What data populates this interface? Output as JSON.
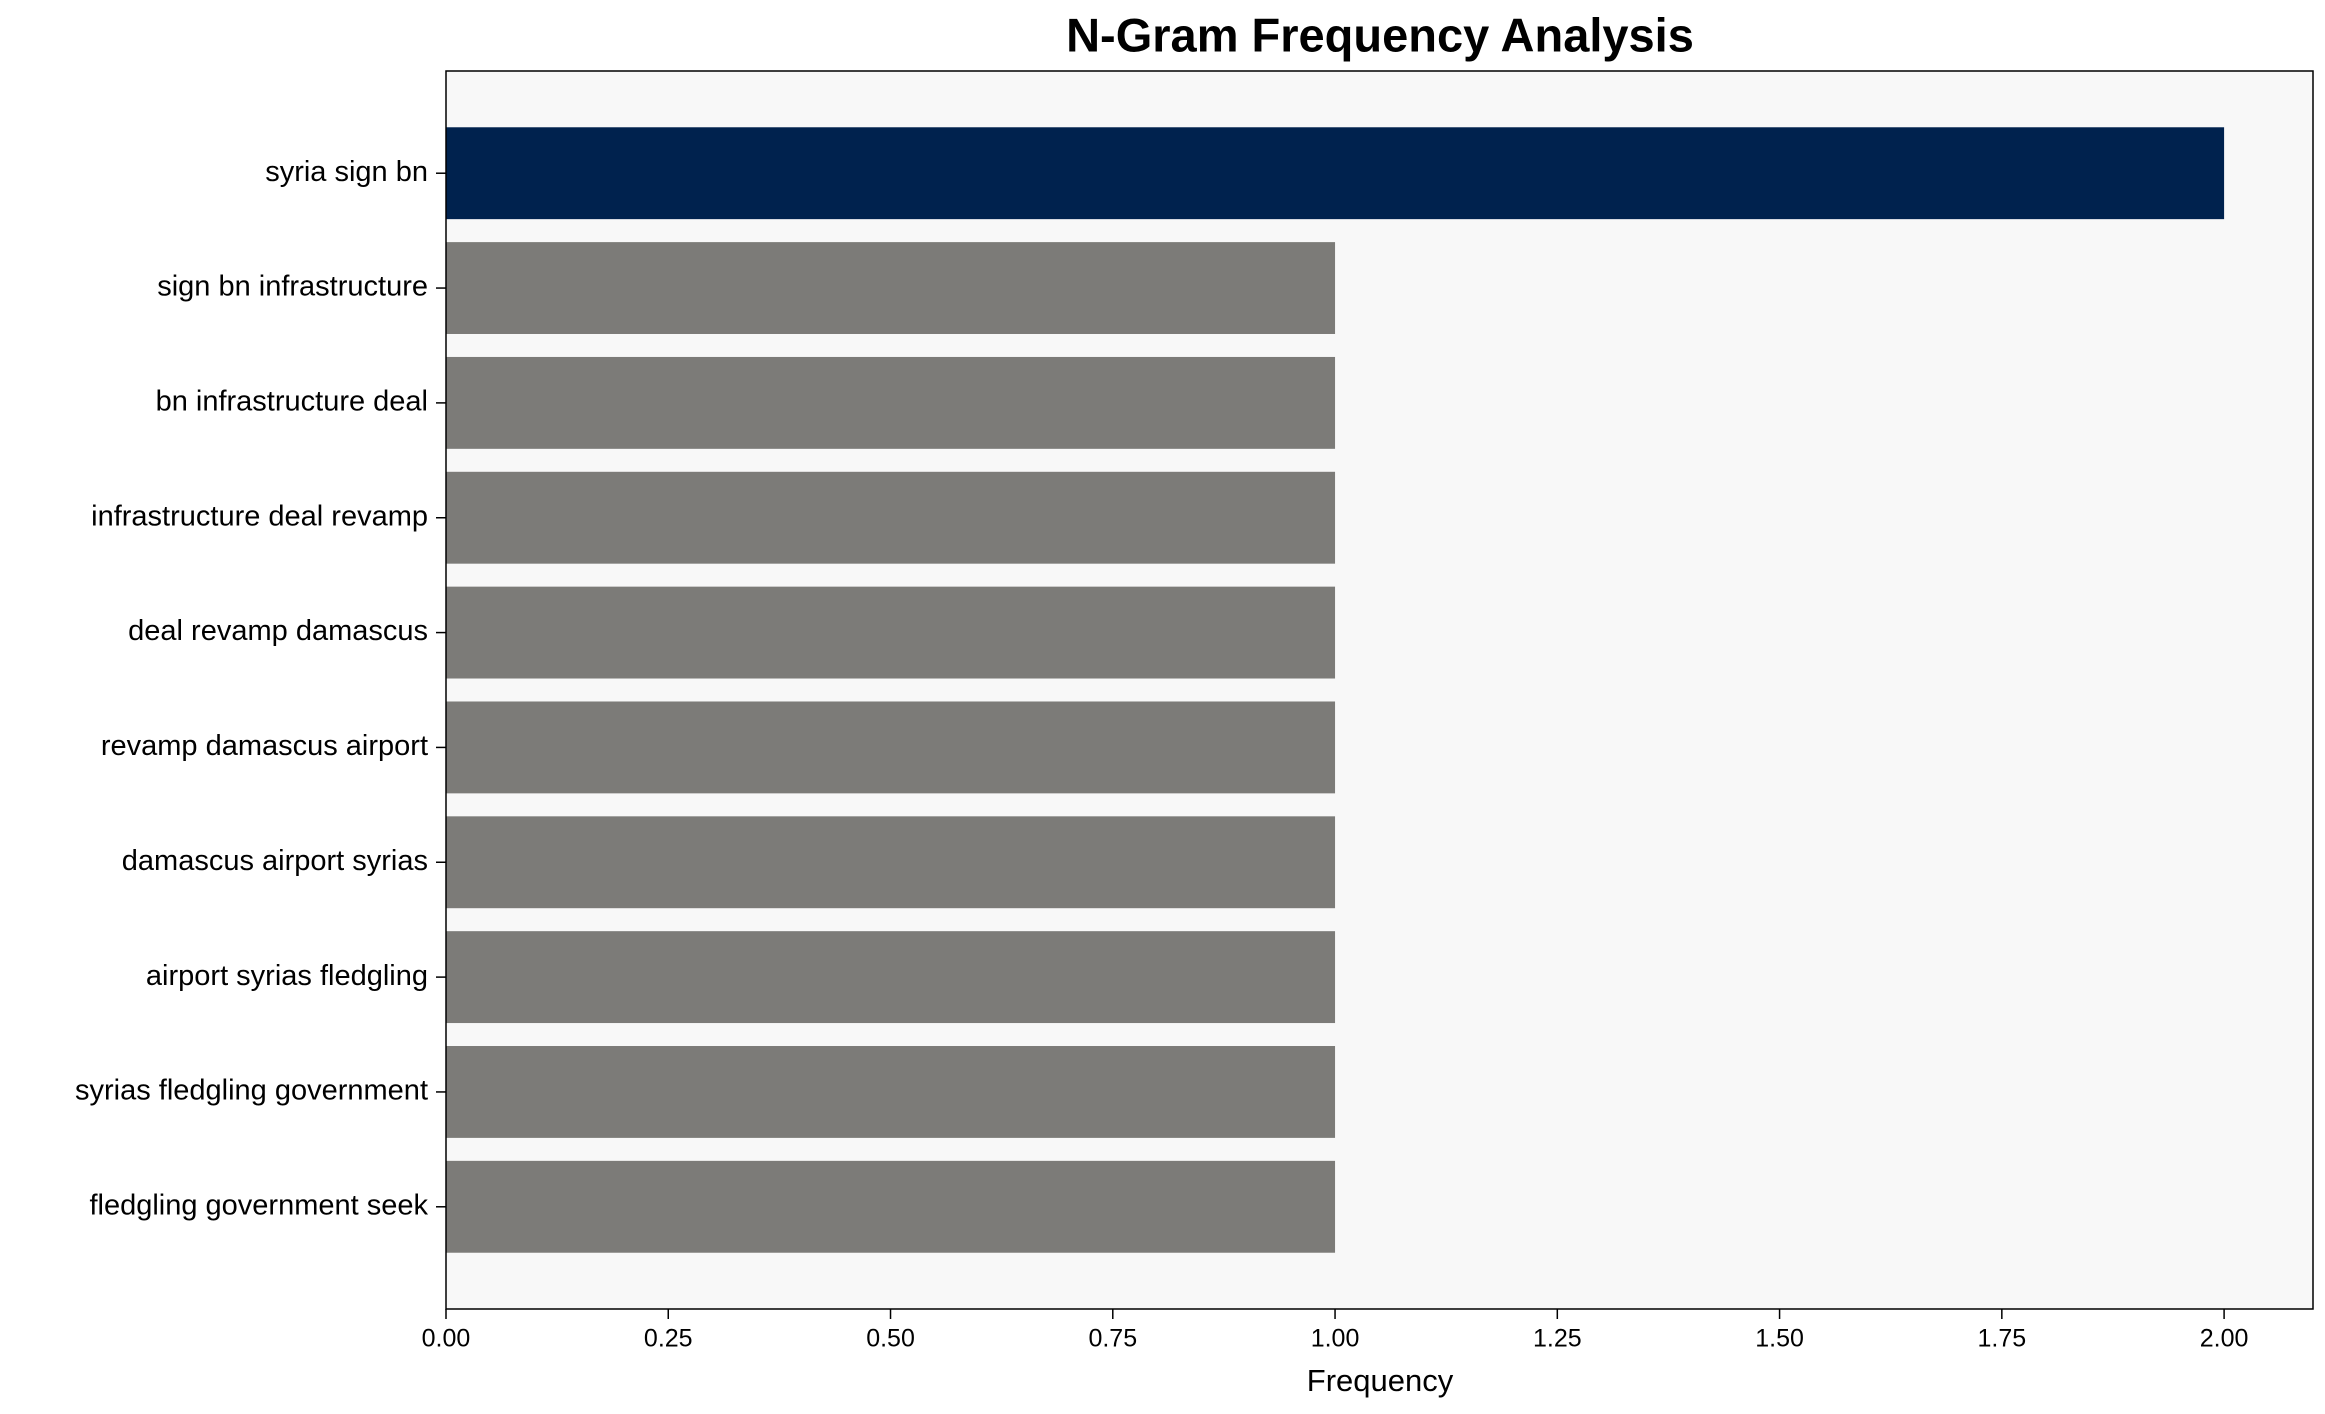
{
  "chart_data": {
    "type": "barh",
    "title": "N-Gram Frequency Analysis",
    "xlabel": "Frequency",
    "categories": [
      "syria sign bn",
      "sign bn infrastructure",
      "bn infrastructure deal",
      "infrastructure deal revamp",
      "deal revamp damascus",
      "revamp damascus airport",
      "damascus airport syrias",
      "airport syrias fledgling",
      "syrias fledgling government",
      "fledgling government seek"
    ],
    "values": [
      2,
      1,
      1,
      1,
      1,
      1,
      1,
      1,
      1,
      1
    ],
    "colors": [
      "#00224e",
      "#7c7b78",
      "#7c7b78",
      "#7c7b78",
      "#7c7b78",
      "#7c7b78",
      "#7c7b78",
      "#7c7b78",
      "#7c7b78",
      "#7c7b78"
    ],
    "xlim": [
      0,
      2.1
    ],
    "xticks": [
      {
        "value": 0,
        "label": "0.00"
      },
      {
        "value": 0.25,
        "label": "0.25"
      },
      {
        "value": 0.5,
        "label": "0.50"
      },
      {
        "value": 0.75,
        "label": "0.75"
      },
      {
        "value": 1,
        "label": "1.00"
      },
      {
        "value": 1.25,
        "label": "1.25"
      },
      {
        "value": 1.5,
        "label": "1.50"
      },
      {
        "value": 1.75,
        "label": "1.75"
      },
      {
        "value": 2,
        "label": "2.00"
      }
    ],
    "grid": false
  }
}
